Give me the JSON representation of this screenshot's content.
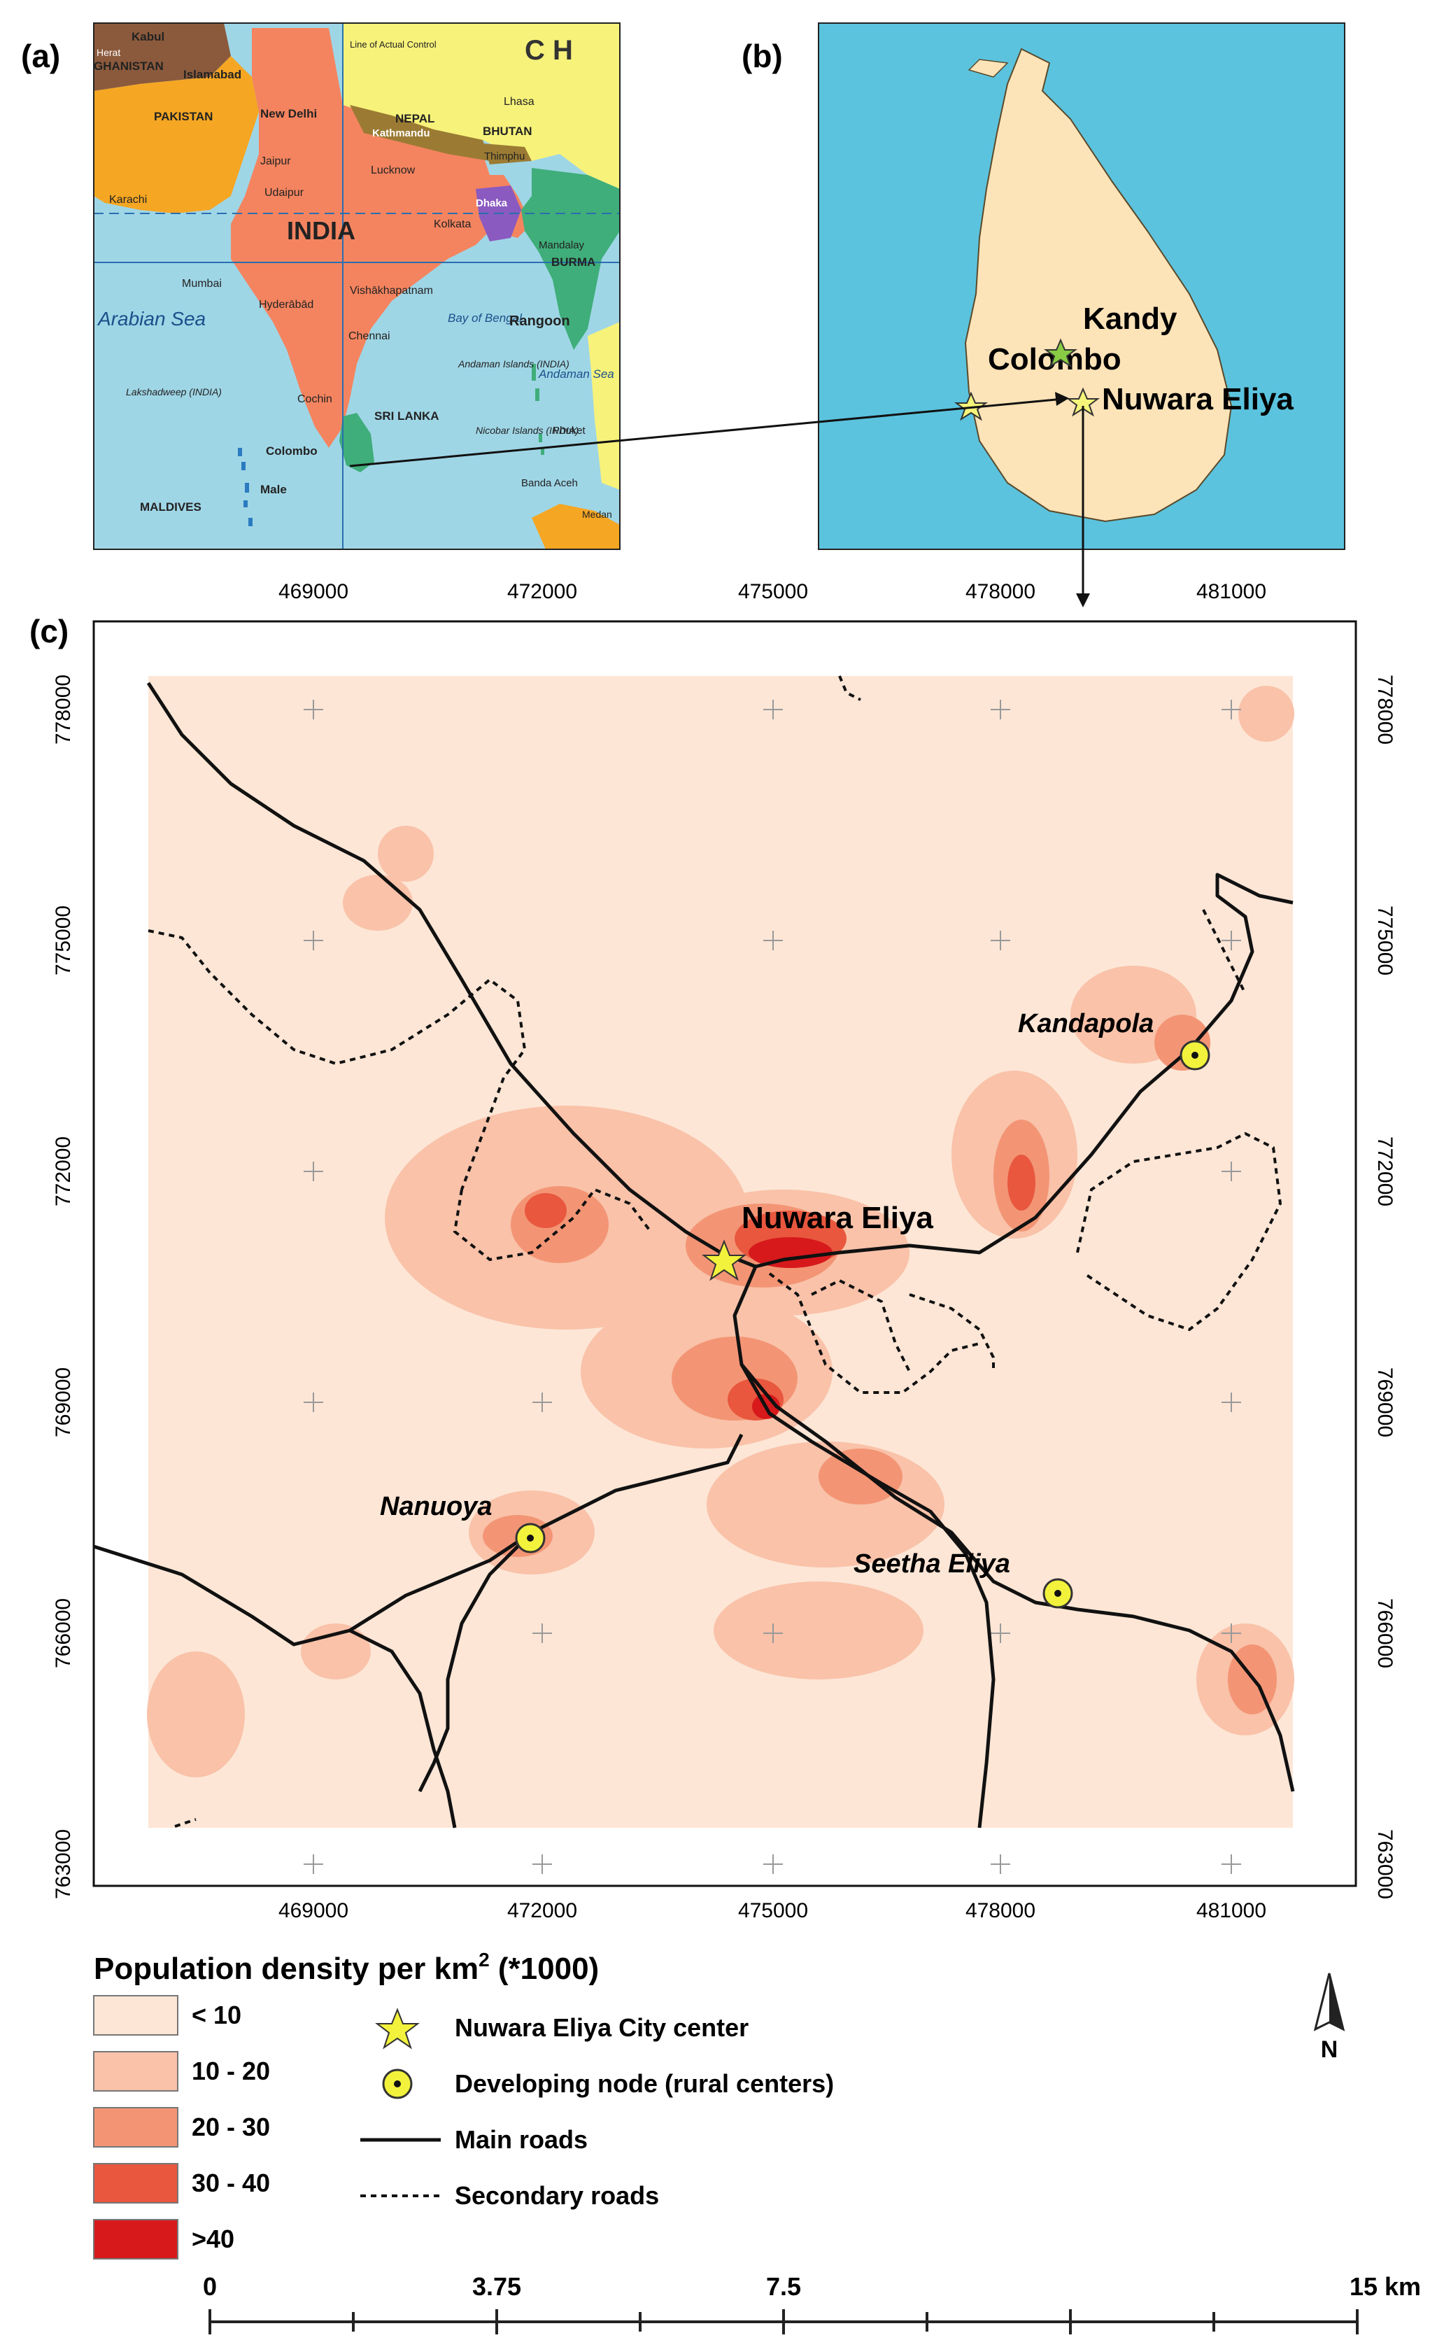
{
  "panels": {
    "a": {
      "label": "(a)"
    },
    "b": {
      "label": "(b)"
    },
    "c": {
      "label": "(c)"
    }
  },
  "map_a": {
    "labels": {
      "india": "INDIA",
      "ch": "C H",
      "pakistan": "PAKISTAN",
      "afghanistan": "GHANISTAN",
      "kabul": "Kabul",
      "herat": "Herat",
      "islamabad": "Islamabad",
      "new_delhi": "New Delhi",
      "line_control": "Line of Actual Control",
      "lhasa": "Lhasa",
      "nepal": "NEPAL",
      "kathmandu": "Kathmandu",
      "bhutan": "BHUTAN",
      "thimphu": "Thimphu",
      "jaipur": "Jaipur",
      "lucknow": "Lucknow",
      "karachi": "Karachi",
      "udaipur": "Udaipur",
      "dhaka": "Dhaka",
      "kolkata": "Kolkata",
      "mandalay": "Mandalay",
      "burma": "BURMA",
      "mumbai": "Mumbai",
      "hyderabad": "Hyderābād",
      "vishakhapatnam": "Vishākhapatnam",
      "arabian_sea": "Arabian Sea",
      "bay_of_bengal": "Bay of Bengal",
      "rangoon": "Rangoon",
      "chennai": "Chennai",
      "andaman_islands": "Andaman Islands (INDIA)",
      "andaman_sea": "Andaman Sea",
      "lakshadweep": "Lakshadweep (INDIA)",
      "cochin": "Cochin",
      "sri_lanka": "SRI LANKA",
      "nicobar": "Nicobar Islands (INDIA)",
      "phuket": "Phuket",
      "colombo": "Colombo",
      "male": "Male",
      "maldives": "MALDIVES",
      "banda_aceh": "Banda Aceh",
      "medan": "Medan"
    }
  },
  "map_b": {
    "kandy": "Kandy",
    "colombo": "Colombo",
    "nuwara_eliya": "Nuwara Eliya"
  },
  "map_c": {
    "x_ticks": [
      "469000",
      "472000",
      "475000",
      "478000",
      "481000"
    ],
    "y_ticks": [
      "778000",
      "775000",
      "772000",
      "769000",
      "766000",
      "763000"
    ],
    "places": {
      "nuwara_eliya": "Nuwara Eliya",
      "kandapola": "Kandapola",
      "nanuoya": "Nanuoya",
      "seetha_eliya": "Seetha Eliya"
    }
  },
  "legend": {
    "title": "Population density per km",
    "title_sup": "2",
    "title_suffix": " (*1000)",
    "classes": [
      {
        "label": "< 10",
        "color": "#fde6d6"
      },
      {
        "label": "10 - 20",
        "color": "#f9c2a9"
      },
      {
        "label": "20 - 30",
        "color": "#f39575"
      },
      {
        "label": "30 - 40",
        "color": "#e8573e"
      },
      {
        "label": ">40",
        "color": "#d7191c"
      }
    ],
    "symbols": {
      "city_center": "Nuwara Eliya City center",
      "developing_node": "Developing node (rural centers)",
      "main_roads": "Main roads",
      "secondary_roads": "Secondary roads"
    }
  },
  "north_arrow": {
    "label": "N"
  },
  "scale_bar": {
    "labels": [
      "0",
      "3.75",
      "7.5",
      "15 km"
    ]
  },
  "colors": {
    "sea": "#9fd6e6",
    "india": "#f4845f",
    "china": "#f7f27a",
    "pakistan": "#f5a623",
    "afghanistan": "#8b5a3c",
    "nepal": "#9b7b33",
    "bangladesh": "#8a5ac0",
    "burma": "#3fae7a",
    "sri_lanka_a": "#3fae7a",
    "sri_lanka_b": "#fde3b8",
    "sea_b": "#5bc3de"
  }
}
